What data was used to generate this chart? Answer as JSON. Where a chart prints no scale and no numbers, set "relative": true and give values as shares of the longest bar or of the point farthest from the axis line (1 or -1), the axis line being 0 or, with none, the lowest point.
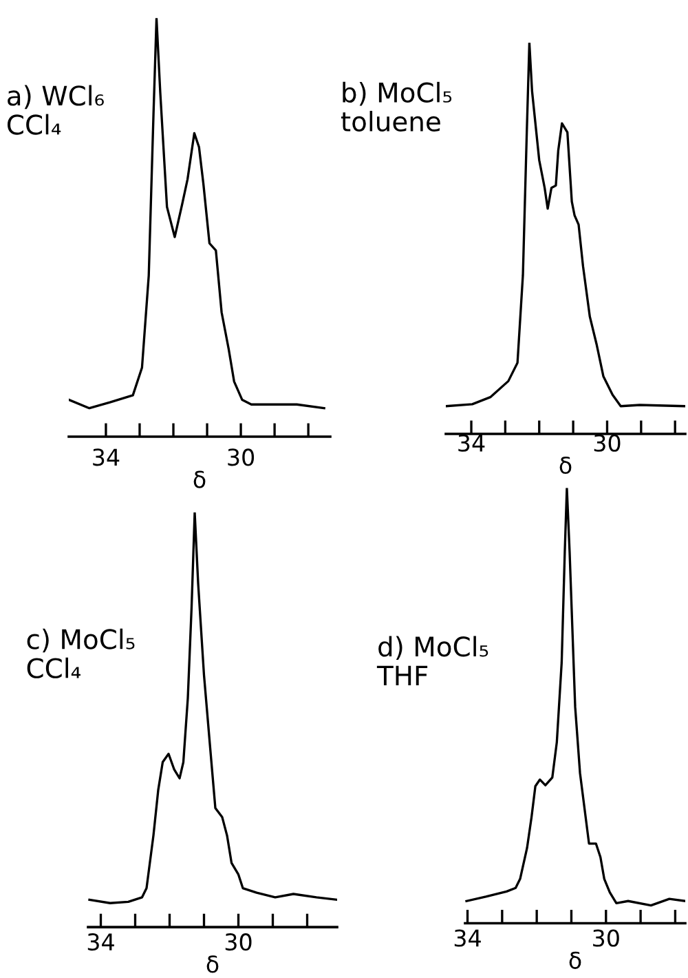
{
  "chart_data": [
    {
      "type": "line",
      "title": "a) WCl₆\nCCl₄",
      "xlabel": "δ",
      "relative": true,
      "xlim": [
        35.1,
        27.35
      ],
      "xticks": [
        34,
        {
          "value": 33,
          "label": null
        },
        {
          "value": 32,
          "label": null
        },
        {
          "value": 31,
          "label": null
        },
        30,
        {
          "value": 29,
          "label": null
        },
        {
          "value": 28,
          "label": null
        }
      ],
      "x": [
        35.09,
        34.49,
        33.88,
        33.2,
        32.93,
        32.73,
        32.59,
        32.5,
        32.39,
        32.19,
        31.96,
        31.74,
        31.58,
        31.38,
        31.24,
        31.11,
        30.93,
        30.74,
        30.57,
        30.36,
        30.2,
        29.96,
        29.69,
        29.01,
        28.34,
        27.53
      ],
      "series": [
        {
          "color": "#000000",
          "values": [
            0.088,
            0.068,
            0.082,
            0.099,
            0.165,
            0.385,
            0.769,
            1.0,
            0.824,
            0.549,
            0.477,
            0.555,
            0.615,
            0.725,
            0.692,
            0.604,
            0.462,
            0.445,
            0.297,
            0.209,
            0.132,
            0.088,
            0.077,
            0.077,
            0.077,
            0.068
          ]
        }
      ]
    },
    {
      "type": "line",
      "title": "b) MoCl₅\ntoluene",
      "xlabel": "δ",
      "relative": true,
      "xlim": [
        34.75,
        27.7
      ],
      "xticks": [
        34,
        {
          "value": 33,
          "label": null
        },
        {
          "value": 32,
          "label": null
        },
        {
          "value": 31,
          "label": null
        },
        30,
        {
          "value": 29,
          "label": null
        },
        {
          "value": 28,
          "label": null
        }
      ],
      "x": [
        34.75,
        33.97,
        33.44,
        32.91,
        32.64,
        32.48,
        32.37,
        32.29,
        32.21,
        32.0,
        31.84,
        31.75,
        31.64,
        31.51,
        31.44,
        31.33,
        31.17,
        31.04,
        30.96,
        30.84,
        30.71,
        30.51,
        30.31,
        30.11,
        29.84,
        29.6,
        29.04,
        27.71
      ],
      "series": [
        {
          "color": "#000000",
          "values": [
            0.071,
            0.076,
            0.094,
            0.135,
            0.182,
            0.406,
            0.759,
            1.0,
            0.876,
            0.7,
            0.629,
            0.576,
            0.629,
            0.635,
            0.724,
            0.794,
            0.771,
            0.594,
            0.559,
            0.535,
            0.429,
            0.3,
            0.229,
            0.147,
            0.1,
            0.071,
            0.074,
            0.071
          ]
        }
      ]
    },
    {
      "type": "line",
      "title": "c) MoCl₅\nCCl₄",
      "xlabel": "δ",
      "relative": true,
      "xlim": [
        34.37,
        27.13
      ],
      "xticks": [
        34,
        {
          "value": 33,
          "label": null
        },
        {
          "value": 32,
          "label": null
        },
        {
          "value": 31,
          "label": null
        },
        30,
        {
          "value": 29,
          "label": null
        },
        {
          "value": 28,
          "label": null
        }
      ],
      "x": [
        34.33,
        33.73,
        33.2,
        32.8,
        32.67,
        32.47,
        32.33,
        32.2,
        32.03,
        31.87,
        31.71,
        31.6,
        31.47,
        31.36,
        31.27,
        31.17,
        31.0,
        30.83,
        30.67,
        30.47,
        30.33,
        30.2,
        30.0,
        29.87,
        29.47,
        28.93,
        28.4,
        27.73,
        27.13
      ],
      "series": [
        {
          "color": "#000000",
          "values": [
            0.066,
            0.058,
            0.061,
            0.072,
            0.094,
            0.221,
            0.331,
            0.398,
            0.418,
            0.381,
            0.359,
            0.398,
            0.552,
            0.773,
            1.0,
            0.829,
            0.608,
            0.442,
            0.287,
            0.265,
            0.221,
            0.155,
            0.127,
            0.094,
            0.083,
            0.072,
            0.08,
            0.072,
            0.066
          ]
        }
      ]
    },
    {
      "type": "line",
      "title": "d) MoCl₅\nTHF",
      "xlabel": "δ",
      "relative": true,
      "xlim": [
        34.07,
        27.71
      ],
      "xticks": [
        34,
        {
          "value": 33,
          "label": null
        },
        {
          "value": 32,
          "label": null
        },
        {
          "value": 31,
          "label": null
        },
        30,
        {
          "value": 29,
          "label": null
        },
        {
          "value": 28,
          "label": null
        }
      ],
      "x": [
        34.03,
        33.47,
        32.87,
        32.61,
        32.48,
        32.28,
        32.15,
        32.04,
        31.91,
        31.75,
        31.55,
        31.42,
        31.28,
        31.19,
        31.13,
        31.05,
        30.89,
        30.75,
        30.49,
        30.29,
        30.16,
        30.05,
        29.89,
        29.7,
        29.36,
        28.7,
        28.17,
        27.71
      ],
      "series": [
        {
          "color": "#000000",
          "values": [
            0.051,
            0.061,
            0.073,
            0.081,
            0.102,
            0.173,
            0.244,
            0.315,
            0.33,
            0.317,
            0.335,
            0.416,
            0.599,
            0.853,
            1.0,
            0.853,
            0.497,
            0.345,
            0.183,
            0.183,
            0.152,
            0.102,
            0.071,
            0.046,
            0.051,
            0.041,
            0.056,
            0.051
          ]
        }
      ]
    }
  ]
}
